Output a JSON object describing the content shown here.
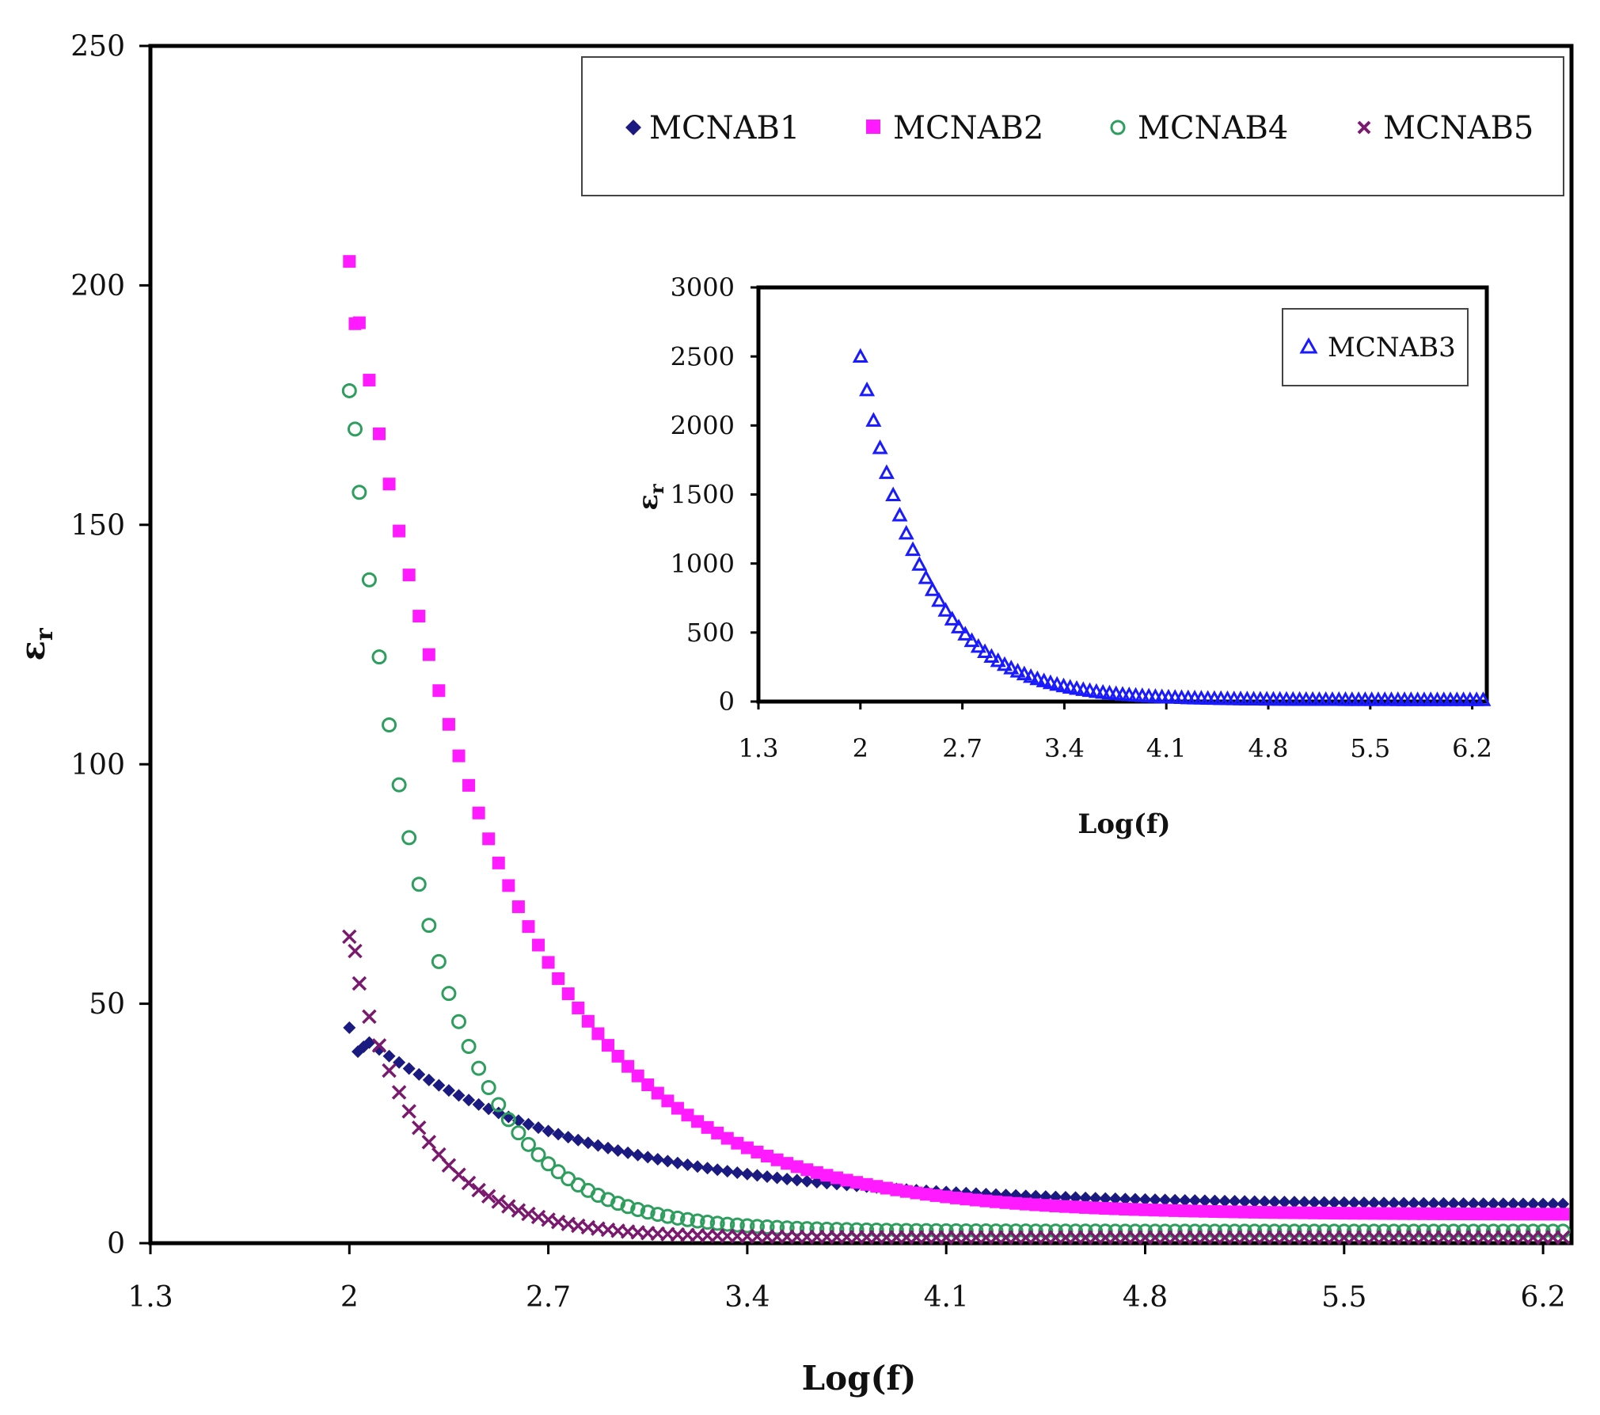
{
  "chart_data": [
    {
      "type": "scatter",
      "title": "",
      "xlabel": "Log(f)",
      "ylabel": "ε",
      "ylabel_sub": "r",
      "xlim": [
        1.3,
        6.3
      ],
      "ylim": [
        0,
        250
      ],
      "x_ticks": [
        "1.3",
        "2",
        "2.7",
        "3.4",
        "4.1",
        "4.8",
        "5.5",
        "6.2"
      ],
      "y_ticks": [
        "0",
        "50",
        "100",
        "150",
        "200",
        "250"
      ],
      "grid": false,
      "legend_position": "top-right",
      "x_range": {
        "start": 2.0,
        "end": 6.3,
        "step": 0.035
      },
      "series": [
        {
          "name": "MCNAB1",
          "marker": "diamond",
          "color": "#1a1a80",
          "model": {
            "a": 8.0,
            "b": 37.0,
            "k": 1.25
          },
          "first_points": [
            {
              "x": 2.0,
              "y": 45
            },
            {
              "x": 2.03,
              "y": 40
            },
            {
              "x": 2.05,
              "y": 41
            }
          ]
        },
        {
          "name": "MCNAB2",
          "marker": "square",
          "color": "#ff1aff",
          "model": {
            "a": 6.0,
            "b": 199.0,
            "k": 1.9
          },
          "first_points": [
            {
              "x": 2.0,
              "y": 205
            },
            {
              "x": 2.02,
              "y": 192
            }
          ]
        },
        {
          "name": "MCNAB4",
          "marker": "circle",
          "color": "#2e9e5e",
          "model": {
            "a": 2.5,
            "b": 175.0,
            "k": 3.6
          },
          "first_points": [
            {
              "x": 2.0,
              "y": 178
            },
            {
              "x": 2.02,
              "y": 170
            }
          ]
        },
        {
          "name": "MCNAB5",
          "marker": "x",
          "color": "#7a1a6e",
          "model": {
            "a": 1.2,
            "b": 61.0,
            "k": 4.0
          },
          "first_points": [
            {
              "x": 2.0,
              "y": 64
            },
            {
              "x": 2.02,
              "y": 61
            }
          ]
        }
      ]
    },
    {
      "type": "scatter",
      "title": "",
      "xlabel": "Log(f)",
      "ylabel": "ε",
      "ylabel_sub": "r",
      "xlim": [
        1.3,
        6.3
      ],
      "ylim": [
        0,
        3000
      ],
      "x_ticks": [
        "1.3",
        "2",
        "2.7",
        "3.4",
        "4.1",
        "4.8",
        "5.5",
        "6.2"
      ],
      "y_ticks": [
        "0",
        "500",
        "1000",
        "1500",
        "2000",
        "2500",
        "3000"
      ],
      "grid": false,
      "legend_position": "top-right",
      "x_range": {
        "start": 2.0,
        "end": 6.3,
        "step": 0.045
      },
      "series": [
        {
          "name": "MCNAB3",
          "marker": "triangle",
          "color": "#1a1aff",
          "model": {
            "a": 12.0,
            "b": 2490.0,
            "k": 2.3
          },
          "first_points": [
            {
              "x": 2.0,
              "y": 2500
            }
          ]
        }
      ]
    }
  ]
}
